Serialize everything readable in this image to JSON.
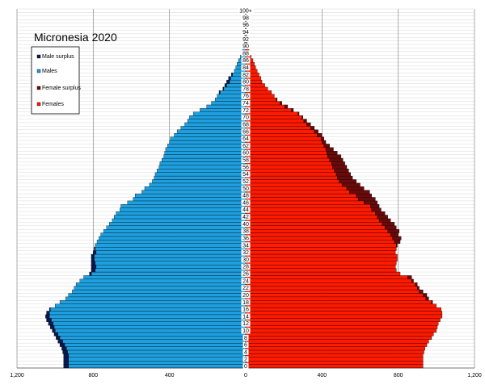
{
  "chart_data": {
    "type": "bar",
    "title": "Micronesia 2020",
    "orientation": "horizontal-pyramid",
    "grid": true,
    "legend_position": "top-left",
    "xlim": [
      -1200,
      1200
    ],
    "x_tick_labels": [
      "1,200",
      "800",
      "400",
      "0",
      "400",
      "800",
      "1,200"
    ],
    "x_tick_values": [
      -1200,
      -800,
      -400,
      0,
      400,
      800,
      1200
    ],
    "age_labels": [
      "0",
      "2",
      "4",
      "6",
      "8",
      "10",
      "12",
      "14",
      "16",
      "18",
      "20",
      "22",
      "24",
      "26",
      "28",
      "30",
      "32",
      "34",
      "36",
      "38",
      "40",
      "42",
      "44",
      "46",
      "48",
      "50",
      "52",
      "54",
      "56",
      "58",
      "60",
      "62",
      "64",
      "66",
      "68",
      "70",
      "72",
      "74",
      "76",
      "78",
      "80",
      "82",
      "84",
      "86",
      "88",
      "90",
      "92",
      "94",
      "96",
      "98",
      "100+"
    ],
    "ages": [
      0,
      1,
      2,
      3,
      4,
      5,
      6,
      7,
      8,
      9,
      10,
      11,
      12,
      13,
      14,
      15,
      16,
      17,
      18,
      19,
      20,
      21,
      22,
      23,
      24,
      25,
      26,
      27,
      28,
      29,
      30,
      31,
      32,
      33,
      34,
      35,
      36,
      37,
      38,
      39,
      40,
      41,
      42,
      43,
      44,
      45,
      46,
      47,
      48,
      49,
      50,
      51,
      52,
      53,
      54,
      55,
      56,
      57,
      58,
      59,
      60,
      61,
      62,
      63,
      64,
      65,
      66,
      67,
      68,
      69,
      70,
      71,
      72,
      73,
      74,
      75,
      76,
      77,
      78,
      79,
      80,
      81,
      82,
      83,
      84,
      85,
      86,
      87,
      88,
      89,
      90,
      91,
      92,
      93,
      94,
      95,
      96,
      97,
      98,
      99,
      100
    ],
    "legend": [
      {
        "label": "Male surplus",
        "color": "#0a1a52"
      },
      {
        "label": "Males",
        "color": "#1ea0e0"
      },
      {
        "label": "Female surplus",
        "color": "#6a0a0a"
      },
      {
        "label": "Females",
        "color": "#ff1a00"
      }
    ],
    "series": [
      {
        "name": "Males",
        "values": [
          955,
          955,
          955,
          955,
          960,
          965,
          975,
          985,
          995,
          1005,
          1015,
          1025,
          1035,
          1045,
          1050,
          1045,
          1030,
          1000,
          975,
          945,
          930,
          910,
          900,
          890,
          870,
          850,
          820,
          810,
          810,
          810,
          810,
          810,
          800,
          795,
          790,
          780,
          770,
          760,
          745,
          730,
          715,
          700,
          690,
          680,
          660,
          655,
          620,
          590,
          580,
          545,
          530,
          505,
          490,
          480,
          475,
          465,
          455,
          450,
          440,
          430,
          425,
          420,
          410,
          400,
          395,
          375,
          360,
          340,
          320,
          305,
          295,
          275,
          240,
          205,
          180,
          160,
          150,
          140,
          120,
          110,
          100,
          90,
          75,
          60,
          52,
          45,
          38,
          28,
          22,
          17,
          12,
          8,
          6,
          5,
          3,
          2,
          2,
          1,
          1,
          1,
          1
        ]
      },
      {
        "name": "Females",
        "values": [
          930,
          930,
          930,
          930,
          935,
          940,
          950,
          960,
          975,
          985,
          1000,
          1005,
          1010,
          1020,
          1030,
          1030,
          1025,
          1000,
          980,
          960,
          950,
          930,
          910,
          900,
          880,
          870,
          810,
          790,
          785,
          790,
          795,
          795,
          785,
          790,
          795,
          810,
          815,
          800,
          805,
          790,
          780,
          760,
          745,
          730,
          710,
          700,
          690,
          680,
          660,
          650,
          620,
          600,
          580,
          560,
          550,
          540,
          530,
          520,
          510,
          500,
          480,
          460,
          440,
          420,
          410,
          400,
          380,
          360,
          340,
          320,
          300,
          280,
          250,
          220,
          190,
          165,
          150,
          135,
          115,
          100,
          85,
          80,
          70,
          60,
          52,
          45,
          38,
          28,
          22,
          17,
          12,
          8,
          6,
          5,
          3,
          2,
          2,
          1,
          1,
          1,
          1
        ]
      }
    ]
  }
}
